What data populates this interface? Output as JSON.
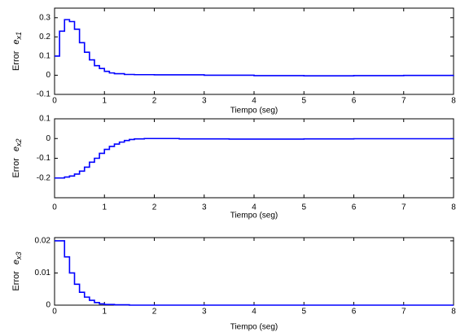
{
  "chart_data": [
    {
      "type": "line",
      "step": "post",
      "xlabel": "Tiempo (seg)",
      "ylabel": "Error",
      "ylabel_symbol": "e",
      "ylabel_subscript": "x1",
      "x": [
        0,
        0.1,
        0.2,
        0.3,
        0.4,
        0.5,
        0.6,
        0.7,
        0.8,
        0.9,
        1.0,
        1.1,
        1.2,
        1.4,
        1.6,
        2,
        3,
        4,
        5,
        6,
        7,
        8
      ],
      "series": [
        {
          "color": "#0000ff",
          "values": [
            0.1,
            0.23,
            0.29,
            0.28,
            0.24,
            0.17,
            0.12,
            0.08,
            0.05,
            0.035,
            0.02,
            0.012,
            0.008,
            0.004,
            0.003,
            0.002,
            0,
            -0.002,
            -0.003,
            -0.002,
            -0.001,
            0
          ]
        }
      ],
      "xlim": [
        0,
        8
      ],
      "xticks": [
        0,
        1,
        2,
        3,
        4,
        5,
        6,
        7,
        8
      ],
      "ylim": [
        -0.1,
        0.35
      ],
      "yticks": [
        -0.1,
        0,
        0.1,
        0.2,
        0.3
      ]
    },
    {
      "type": "line",
      "step": "post",
      "xlabel": "Tiempo (seg)",
      "ylabel": "Error",
      "ylabel_symbol": "e",
      "ylabel_subscript": "x2",
      "x": [
        0,
        0.2,
        0.3,
        0.4,
        0.5,
        0.6,
        0.7,
        0.8,
        0.9,
        1.0,
        1.1,
        1.2,
        1.3,
        1.4,
        1.5,
        1.6,
        1.8,
        2.5,
        3.5,
        5,
        6,
        8
      ],
      "series": [
        {
          "color": "#0000ff",
          "values": [
            -0.2,
            -0.195,
            -0.19,
            -0.18,
            -0.165,
            -0.145,
            -0.12,
            -0.1,
            -0.075,
            -0.055,
            -0.04,
            -0.028,
            -0.018,
            -0.01,
            -0.005,
            -0.002,
            0,
            -0.002,
            -0.003,
            -0.002,
            -0.001,
            0
          ]
        }
      ],
      "xlim": [
        0,
        8
      ],
      "xticks": [
        0,
        1,
        2,
        3,
        4,
        5,
        6,
        7,
        8
      ],
      "ylim": [
        -0.3,
        0.1
      ],
      "yticks": [
        -0.2,
        -0.1,
        0,
        0.1
      ]
    },
    {
      "type": "line",
      "step": "post",
      "xlabel": "Tiempo (seg)",
      "ylabel": "Error",
      "ylabel_symbol": "e",
      "ylabel_subscript": "x3",
      "x": [
        0,
        0.2,
        0.3,
        0.4,
        0.5,
        0.6,
        0.7,
        0.8,
        0.9,
        1.0,
        1.2,
        1.5,
        8
      ],
      "series": [
        {
          "color": "#0000ff",
          "values": [
            0.02,
            0.015,
            0.01,
            0.0065,
            0.004,
            0.0025,
            0.0015,
            0.0008,
            0.0004,
            0.0002,
            0.0001,
            0,
            0
          ]
        }
      ],
      "xlim": [
        0,
        8
      ],
      "xticks": [
        0,
        1,
        2,
        3,
        4,
        5,
        6,
        7,
        8
      ],
      "ylim": [
        0,
        0.021
      ],
      "yticks": [
        0,
        0.01,
        0.02
      ]
    }
  ]
}
